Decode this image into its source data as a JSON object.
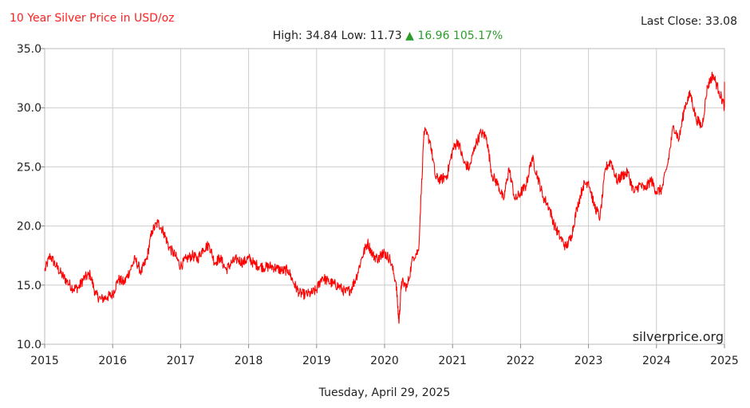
{
  "chart_data": {
    "type": "line",
    "title": "10 Year Silver Price in USD/oz",
    "last_close_text": "Last Close: 33.08",
    "stats": {
      "high_text": "High: 34.84",
      "low_text": "Low: 11.73",
      "change_text": "16.96 105.17%"
    },
    "watermark": "silverprice.org",
    "date_caption": "Tuesday, April 29, 2025",
    "xlim": [
      2015,
      2025
    ],
    "ylim": [
      10,
      35
    ],
    "x_ticks": [
      "2015",
      "2016",
      "2017",
      "2018",
      "2019",
      "2020",
      "2021",
      "2022",
      "2023",
      "2024",
      "2025"
    ],
    "y_ticks": [
      "10.0",
      "15.0",
      "20.0",
      "25.0",
      "30.0",
      "35.0"
    ],
    "grid": true,
    "line_color": "#ff0000",
    "series": [
      {
        "x": [
          2015.0,
          2015.08,
          2015.17,
          2015.25,
          2015.33,
          2015.42,
          2015.5,
          2015.58,
          2015.67,
          2015.75,
          2015.83,
          2015.92,
          2016.0,
          2016.08,
          2016.17,
          2016.25,
          2016.33,
          2016.42,
          2016.5,
          2016.58,
          2016.67,
          2016.75,
          2016.83,
          2016.92,
          2017.0,
          2017.08,
          2017.17,
          2017.25,
          2017.33,
          2017.42,
          2017.5,
          2017.58,
          2017.67,
          2017.75,
          2017.83,
          2017.92,
          2018.0,
          2018.08,
          2018.17,
          2018.25,
          2018.33,
          2018.42,
          2018.5,
          2018.58,
          2018.67,
          2018.75,
          2018.83,
          2018.92,
          2019.0,
          2019.08,
          2019.17,
          2019.25,
          2019.33,
          2019.42,
          2019.5,
          2019.58,
          2019.67,
          2019.75,
          2019.83,
          2019.92,
          2019.96,
          2020.0,
          2020.08,
          2020.17,
          2020.21,
          2020.25,
          2020.33,
          2020.42,
          2020.5,
          2020.58,
          2020.67,
          2020.75,
          2020.83,
          2020.92,
          2021.0,
          2021.08,
          2021.17,
          2021.25,
          2021.33,
          2021.42,
          2021.5,
          2021.58,
          2021.67,
          2021.75,
          2021.83,
          2021.92,
          2022.0,
          2022.08,
          2022.17,
          2022.25,
          2022.33,
          2022.42,
          2022.5,
          2022.58,
          2022.67,
          2022.75,
          2022.83,
          2022.92,
          2023.0,
          2023.08,
          2023.17,
          2023.25,
          2023.33,
          2023.42,
          2023.5,
          2023.58,
          2023.67,
          2023.75,
          2023.83,
          2023.92,
          2024.0,
          2024.08,
          2024.17,
          2024.25,
          2024.33,
          2024.42,
          2024.5,
          2024.58,
          2024.67,
          2024.75,
          2024.83,
          2024.92,
          2025.0,
          2025.08
        ],
        "y": [
          16.2,
          17.5,
          16.6,
          15.9,
          15.3,
          14.7,
          14.8,
          15.6,
          15.9,
          14.2,
          13.8,
          14.0,
          14.2,
          15.5,
          15.2,
          16.2,
          17.2,
          16.1,
          17.2,
          19.6,
          20.3,
          19.5,
          18.2,
          17.5,
          16.6,
          17.2,
          17.5,
          17.2,
          18.1,
          18.4,
          16.9,
          17.3,
          16.3,
          16.9,
          17.2,
          16.9,
          17.3,
          16.8,
          16.6,
          16.5,
          16.6,
          16.4,
          16.2,
          16.3,
          15.1,
          14.3,
          14.2,
          14.3,
          14.6,
          15.7,
          15.3,
          15.1,
          14.9,
          14.4,
          14.6,
          15.6,
          17.4,
          18.6,
          17.5,
          17.2,
          17.8,
          17.7,
          17.2,
          15.2,
          11.8,
          15.3,
          14.8,
          17.4,
          17.9,
          28.0,
          27.2,
          24.1,
          23.9,
          24.3,
          26.4,
          27.2,
          25.3,
          24.9,
          26.8,
          27.9,
          27.5,
          24.3,
          23.5,
          22.2,
          24.9,
          22.2,
          22.8,
          23.4,
          25.8,
          24.2,
          22.5,
          21.6,
          20.0,
          19.1,
          18.2,
          19.2,
          21.5,
          23.4,
          23.8,
          21.8,
          20.7,
          24.9,
          25.5,
          23.8,
          24.3,
          24.5,
          22.8,
          23.5,
          23.1,
          23.9,
          22.9,
          23.1,
          25.4,
          28.5,
          27.3,
          30.2,
          31.2,
          29.1,
          28.4,
          31.8,
          32.8,
          31.4,
          30.1,
          32.2
        ]
      }
    ]
  }
}
